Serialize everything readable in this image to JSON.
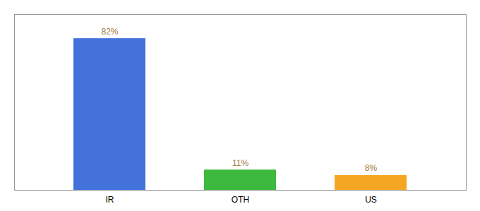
{
  "chart_data": {
    "type": "bar",
    "categories": [
      "IR",
      "OTH",
      "US"
    ],
    "values": [
      82,
      11,
      8
    ],
    "value_labels": [
      "82%",
      "11%",
      "8%"
    ],
    "colors": [
      "#4472db",
      "#3dba3d",
      "#f5a623"
    ],
    "ylim": [
      0,
      95
    ],
    "data_labels": true,
    "tick_labels": "x"
  }
}
